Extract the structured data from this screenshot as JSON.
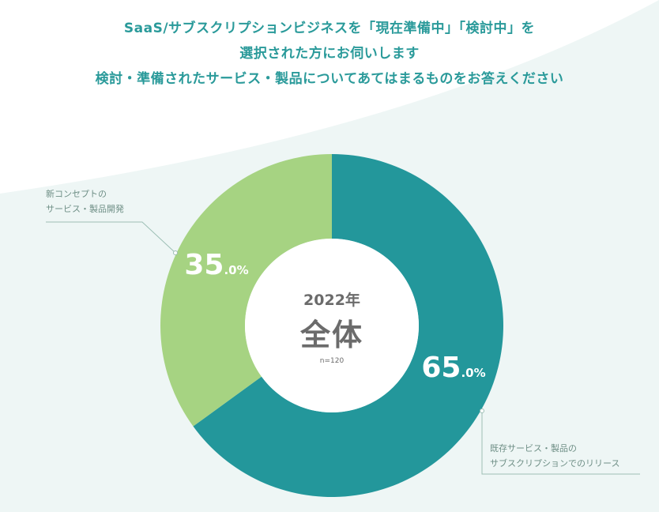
{
  "title_lines": [
    "SaaS/サブスクリプションビジネスを「現在準備中」「検討中」を",
    "選択された方にお伺いします",
    "検討・準備されたサービス・製品についてあてはまるものをお答えください"
  ],
  "center": {
    "year": "2022年",
    "label": "全体",
    "n": "n=120"
  },
  "chart_data": {
    "type": "pie",
    "donut": true,
    "slices": [
      {
        "label_lines": [
          "既存サービス・製品の",
          "サブスクリプションでのリリース"
        ],
        "value": 65.0,
        "value_main": "65",
        "value_suffix": ".0%",
        "color": "#23979b"
      },
      {
        "label_lines": [
          "新コンセプトの",
          "サービス・製品開発"
        ],
        "value": 35.0,
        "value_main": "35",
        "value_suffix": ".0%",
        "color": "#a6d382"
      }
    ]
  },
  "colors": {
    "title": "#2a9a9a",
    "background_shape": "#eef6f5",
    "leader_line": "#9dbfb5",
    "center_text": "#6b6b6b"
  }
}
